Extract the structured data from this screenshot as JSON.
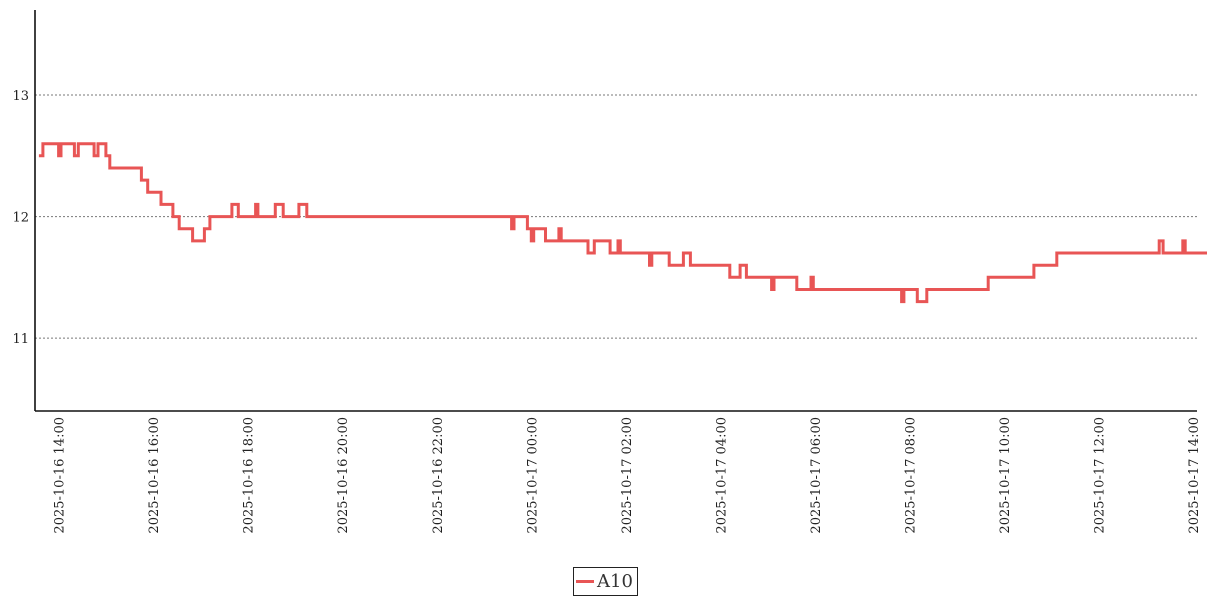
{
  "chart_data": {
    "type": "line",
    "title": "",
    "xlabel": "",
    "ylabel": "",
    "ylim": [
      10.4,
      13.7
    ],
    "xlim": [
      "2025-10-16 13:30",
      "2025-10-17 14:05"
    ],
    "grid": {
      "y": true,
      "x": false
    },
    "legend_position": "bottom-center",
    "y_ticks": [
      {
        "value": 11,
        "label": "11"
      },
      {
        "value": 12,
        "label": "12"
      },
      {
        "value": 13,
        "label": "13"
      }
    ],
    "x_ticks": [
      {
        "value": "2025-10-16 14:00",
        "label": "2025-10-16 14:00"
      },
      {
        "value": "2025-10-16 16:00",
        "label": "2025-10-16 16:00"
      },
      {
        "value": "2025-10-16 18:00",
        "label": "2025-10-16 18:00"
      },
      {
        "value": "2025-10-16 20:00",
        "label": "2025-10-16 20:00"
      },
      {
        "value": "2025-10-16 22:00",
        "label": "2025-10-16 22:00"
      },
      {
        "value": "2025-10-17 00:00",
        "label": "2025-10-17 00:00"
      },
      {
        "value": "2025-10-17 02:00",
        "label": "2025-10-17 02:00"
      },
      {
        "value": "2025-10-17 04:00",
        "label": "2025-10-17 04:00"
      },
      {
        "value": "2025-10-17 06:00",
        "label": "2025-10-17 06:00"
      },
      {
        "value": "2025-10-17 08:00",
        "label": "2025-10-17 08:00"
      },
      {
        "value": "2025-10-17 10:00",
        "label": "2025-10-17 10:00"
      },
      {
        "value": "2025-10-17 12:00",
        "label": "2025-10-17 12:00"
      },
      {
        "value": "2025-10-17 14:00",
        "label": "2025-10-17 14:00"
      }
    ],
    "series": [
      {
        "name": "A10",
        "color": "#e85555",
        "step": true,
        "points": [
          [
            "2025-10-16 13:35",
            12.5
          ],
          [
            "2025-10-16 13:40",
            12.6
          ],
          [
            "2025-10-16 14:00",
            12.5
          ],
          [
            "2025-10-16 14:03",
            12.6
          ],
          [
            "2025-10-16 14:20",
            12.5
          ],
          [
            "2025-10-16 14:25",
            12.6
          ],
          [
            "2025-10-16 14:45",
            12.5
          ],
          [
            "2025-10-16 14:50",
            12.6
          ],
          [
            "2025-10-16 15:00",
            12.5
          ],
          [
            "2025-10-16 15:05",
            12.4
          ],
          [
            "2025-10-16 15:45",
            12.3
          ],
          [
            "2025-10-16 15:53",
            12.2
          ],
          [
            "2025-10-16 16:10",
            12.1
          ],
          [
            "2025-10-16 16:25",
            12.0
          ],
          [
            "2025-10-16 16:33",
            11.9
          ],
          [
            "2025-10-16 16:50",
            11.8
          ],
          [
            "2025-10-16 17:05",
            11.9
          ],
          [
            "2025-10-16 17:12",
            12.0
          ],
          [
            "2025-10-16 17:40",
            12.1
          ],
          [
            "2025-10-16 17:48",
            12.0
          ],
          [
            "2025-10-16 18:10",
            12.1
          ],
          [
            "2025-10-16 18:13",
            12.0
          ],
          [
            "2025-10-16 18:35",
            12.1
          ],
          [
            "2025-10-16 18:45",
            12.0
          ],
          [
            "2025-10-16 19:05",
            12.1
          ],
          [
            "2025-10-16 19:15",
            12.0
          ],
          [
            "2025-10-16 23:35",
            11.9
          ],
          [
            "2025-10-16 23:38",
            12.0
          ],
          [
            "2025-10-16 23:55",
            11.9
          ],
          [
            "2025-10-16 23:59",
            11.9
          ],
          [
            "2025-10-17 00:00",
            11.8
          ],
          [
            "2025-10-17 00:03",
            11.9
          ],
          [
            "2025-10-17 00:18",
            11.8
          ],
          [
            "2025-10-17 00:35",
            11.9
          ],
          [
            "2025-10-17 00:38",
            11.8
          ],
          [
            "2025-10-17 01:12",
            11.7
          ],
          [
            "2025-10-17 01:20",
            11.8
          ],
          [
            "2025-10-17 01:40",
            11.7
          ],
          [
            "2025-10-17 01:50",
            11.8
          ],
          [
            "2025-10-17 01:53",
            11.7
          ],
          [
            "2025-10-17 02:30",
            11.6
          ],
          [
            "2025-10-17 02:33",
            11.7
          ],
          [
            "2025-10-17 02:55",
            11.6
          ],
          [
            "2025-10-17 03:13",
            11.7
          ],
          [
            "2025-10-17 03:22",
            11.6
          ],
          [
            "2025-10-17 04:12",
            11.5
          ],
          [
            "2025-10-17 04:25",
            11.6
          ],
          [
            "2025-10-17 04:33",
            11.5
          ],
          [
            "2025-10-17 05:05",
            11.4
          ],
          [
            "2025-10-17 05:08",
            11.5
          ],
          [
            "2025-10-17 05:37",
            11.4
          ],
          [
            "2025-10-17 05:55",
            11.5
          ],
          [
            "2025-10-17 05:58",
            11.4
          ],
          [
            "2025-10-17 07:50",
            11.3
          ],
          [
            "2025-10-17 07:53",
            11.4
          ],
          [
            "2025-10-17 08:10",
            11.3
          ],
          [
            "2025-10-17 08:22",
            11.4
          ],
          [
            "2025-10-17 09:40",
            11.5
          ],
          [
            "2025-10-17 10:38",
            11.6
          ],
          [
            "2025-10-17 11:07",
            11.7
          ],
          [
            "2025-10-17 13:17",
            11.8
          ],
          [
            "2025-10-17 13:22",
            11.7
          ],
          [
            "2025-10-17 13:47",
            11.8
          ],
          [
            "2025-10-17 13:50",
            11.7
          ],
          [
            "2025-10-17 14:20",
            11.7
          ]
        ]
      }
    ]
  }
}
